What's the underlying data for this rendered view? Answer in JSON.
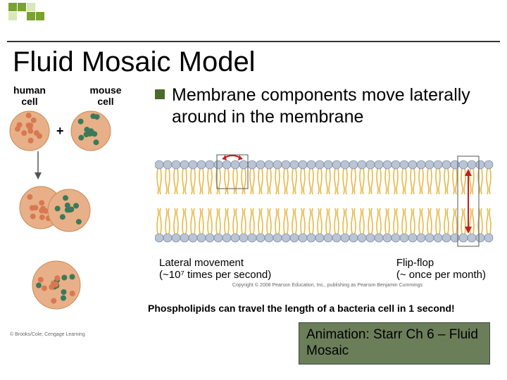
{
  "logo": {
    "colors": [
      "#7aa22e",
      "#7aa22e",
      "#d9e8b8",
      "#ffffff",
      "#ffffff",
      "#d9e8b8",
      "#ffffff",
      "#7aa22e",
      "#7aa22e",
      "#ffffff"
    ]
  },
  "title": "Fluid Mosaic Model",
  "left": {
    "human_label": "human\ncell",
    "mouse_label": "mouse\ncell",
    "plus": "+",
    "credit": "© Brooks/Cole, Cengage Learning",
    "cell": {
      "body_fill": "#e8b088",
      "body_stroke": "#c88858",
      "human_dot": "#d97850",
      "mouse_dot": "#3a7a5a",
      "radius": 28,
      "dot_r": 4
    },
    "arrow_color": "#555555"
  },
  "bullet": {
    "marker_color": "#4a6b2a",
    "text": "Membrane components move laterally around in the membrane"
  },
  "membrane": {
    "head_color": "#b9c4d4",
    "head_stroke": "#6a7a95",
    "tail_color": "#e8b848",
    "box_stroke": "#555555",
    "arrow_color": "#c02020",
    "lateral_label": "Lateral movement",
    "lateral_sub": "(~10⁷ times per second)",
    "flip_label": "Flip-flop",
    "flip_sub": "(~ once per month)",
    "credit": "Copyright © 2008 Pearson Education, Inc., publishing as Pearson Benjamin Cummings"
  },
  "caption": "Phospholipids can travel the length of a bacteria cell in 1 second!",
  "anim_box": {
    "bg": "#6b7e5a",
    "text": "Animation: Starr Ch 6 – Fluid Mosaic"
  }
}
